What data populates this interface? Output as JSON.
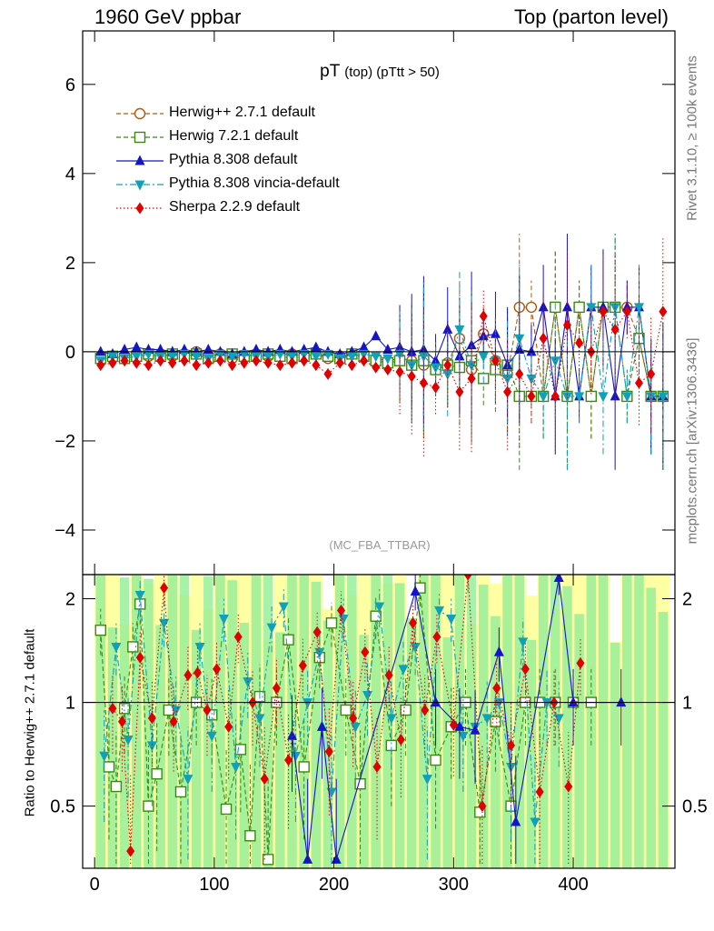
{
  "header": {
    "left": "1960 GeV ppbar",
    "right": "Top (parton level)"
  },
  "side_labels": {
    "rivet": "Rivet 3.1.10, ≥ 100k events",
    "mcplots": "mcplots.cern.ch [arXiv:1306.3436]"
  },
  "plot_title": {
    "main": "pT",
    "sub": "(top) (pTtt > 50)"
  },
  "analysis_tag": "(MC_FBA_TTBAR)",
  "chart_data": [
    {
      "type": "scatter",
      "panel": "main",
      "xlim": [
        -10,
        485
      ],
      "ylim": [
        -5,
        7.2
      ],
      "yticks": [
        -4,
        -2,
        0,
        2,
        4,
        6
      ],
      "xticks": [
        0,
        100,
        200,
        300,
        400
      ],
      "legend_position": "top-left",
      "series": [
        {
          "name": "Herwig++ 2.7.1 default",
          "color": "#b05a10",
          "marker": "circle-open",
          "line": "dashed",
          "x": [
            5,
            15,
            25,
            35,
            45,
            55,
            65,
            75,
            85,
            95,
            105,
            115,
            125,
            135,
            145,
            155,
            165,
            175,
            185,
            195,
            205,
            215,
            225,
            235,
            245,
            255,
            265,
            275,
            285,
            295,
            305,
            315,
            325,
            335,
            345,
            355,
            365,
            375,
            385,
            395,
            405,
            415,
            425,
            435,
            445,
            455,
            465,
            475
          ],
          "y": [
            -0.1,
            -0.15,
            -0.1,
            -0.05,
            -0.1,
            -0.05,
            -0.1,
            -0.05,
            0.0,
            -0.1,
            -0.05,
            -0.15,
            -0.1,
            -0.05,
            -0.1,
            -0.05,
            -0.05,
            -0.1,
            -0.05,
            -0.15,
            -0.1,
            -0.05,
            -0.1,
            -0.15,
            -0.2,
            -0.15,
            -0.2,
            -0.3,
            -0.35,
            -0.25,
            0.3,
            -0.4,
            0.4,
            -0.2,
            -0.5,
            1.0,
            1.0,
            -1.0,
            1.0,
            -1.0,
            1.0,
            -1.0,
            1.0,
            1.0,
            1.0,
            0.3,
            -1.0,
            -1.0
          ]
        },
        {
          "name": "Herwig 7.2.1 default",
          "color": "#3a8a10",
          "marker": "square-open",
          "line": "dashed",
          "x": [
            5,
            15,
            25,
            35,
            45,
            55,
            65,
            75,
            85,
            95,
            105,
            115,
            125,
            135,
            145,
            155,
            165,
            175,
            185,
            195,
            205,
            215,
            225,
            235,
            245,
            255,
            265,
            275,
            285,
            295,
            305,
            315,
            325,
            335,
            345,
            355,
            365,
            375,
            385,
            395,
            405,
            415,
            425,
            435,
            445,
            455,
            465,
            475
          ],
          "y": [
            -0.15,
            -0.1,
            -0.15,
            -0.1,
            -0.05,
            -0.1,
            -0.05,
            -0.1,
            -0.05,
            -0.15,
            -0.1,
            -0.05,
            -0.1,
            -0.1,
            -0.05,
            -0.1,
            -0.15,
            -0.1,
            -0.05,
            -0.1,
            -0.15,
            -0.05,
            -0.1,
            -0.2,
            -0.25,
            -0.2,
            -0.3,
            -0.2,
            -0.4,
            -0.3,
            -0.35,
            -0.2,
            -0.6,
            -0.4,
            -0.3,
            -1.0,
            -1.0,
            -1.0,
            1.0,
            -1.0,
            1.0,
            -1.0,
            1.0,
            1.0,
            -1.0,
            0.3,
            -1.0,
            -1.0
          ]
        },
        {
          "name": "Pythia 8.308 default",
          "color": "#1515c8",
          "marker": "triangle-up",
          "line": "solid",
          "x": [
            5,
            15,
            25,
            35,
            45,
            55,
            65,
            75,
            85,
            95,
            105,
            115,
            125,
            135,
            145,
            155,
            165,
            175,
            185,
            195,
            205,
            215,
            225,
            235,
            245,
            255,
            265,
            275,
            285,
            295,
            305,
            315,
            325,
            335,
            345,
            355,
            365,
            375,
            385,
            395,
            405,
            415,
            425,
            435,
            445,
            455,
            465,
            475
          ],
          "y": [
            0.0,
            -0.05,
            0.05,
            0.1,
            0.05,
            0.05,
            0.0,
            0.05,
            0.0,
            0.05,
            0.0,
            -0.05,
            0.0,
            0.05,
            0.0,
            0.05,
            0.0,
            0.05,
            0.1,
            0.0,
            -0.05,
            0.0,
            0.1,
            0.35,
            0.05,
            0.1,
            0.0,
            0.05,
            -0.2,
            0.5,
            -0.1,
            0.15,
            0.35,
            0.4,
            -0.3,
            0.05,
            0.0,
            1.0,
            -1.0,
            1.0,
            -1.0,
            1.0,
            1.0,
            -1.0,
            1.0,
            1.0,
            -1.0,
            -1.0
          ]
        },
        {
          "name": "Pythia 8.308 vincia-default",
          "color": "#10a0b8",
          "marker": "triangle-down",
          "line": "dashdot",
          "x": [
            5,
            15,
            25,
            35,
            45,
            55,
            65,
            75,
            85,
            95,
            105,
            115,
            125,
            135,
            145,
            155,
            165,
            175,
            185,
            195,
            205,
            215,
            225,
            235,
            245,
            255,
            265,
            275,
            285,
            295,
            305,
            315,
            325,
            335,
            345,
            355,
            365,
            375,
            385,
            395,
            405,
            415,
            425,
            435,
            445,
            455,
            465,
            475
          ],
          "y": [
            -0.2,
            -0.1,
            -0.15,
            -0.1,
            -0.05,
            -0.1,
            -0.1,
            -0.05,
            -0.1,
            -0.15,
            -0.05,
            -0.1,
            -0.05,
            -0.1,
            -0.1,
            -0.05,
            -0.1,
            -0.05,
            -0.1,
            -0.05,
            -0.15,
            -0.1,
            -0.05,
            -0.1,
            -0.15,
            -0.05,
            -0.3,
            -0.1,
            -0.35,
            -0.5,
            0.5,
            -0.3,
            -0.1,
            -0.2,
            -0.6,
            0.3,
            -0.6,
            -1.0,
            -0.2,
            -1.0,
            -1.0,
            1.0,
            -1.0,
            1.0,
            -1.0,
            1.0,
            -1.0,
            -1.0
          ]
        },
        {
          "name": "Sherpa 2.2.9 default",
          "color": "#e00000",
          "marker": "diamond",
          "line": "dotted",
          "x": [
            5,
            15,
            25,
            35,
            45,
            55,
            65,
            75,
            85,
            95,
            105,
            115,
            125,
            135,
            145,
            155,
            165,
            175,
            185,
            195,
            205,
            215,
            225,
            235,
            245,
            255,
            265,
            275,
            285,
            295,
            305,
            315,
            325,
            335,
            345,
            355,
            365,
            375,
            385,
            395,
            405,
            415,
            425,
            435,
            445,
            455,
            465,
            475
          ],
          "y": [
            -0.3,
            -0.25,
            -0.2,
            -0.25,
            -0.3,
            -0.2,
            -0.25,
            -0.2,
            -0.3,
            -0.25,
            -0.2,
            -0.3,
            -0.25,
            -0.2,
            -0.25,
            -0.3,
            -0.25,
            -0.2,
            -0.3,
            -0.5,
            -0.25,
            -0.3,
            -0.2,
            -0.35,
            -0.4,
            -0.45,
            -0.55,
            -0.7,
            -0.8,
            -0.3,
            -0.9,
            -0.6,
            0.8,
            -0.2,
            -0.9,
            -0.5,
            -1.0,
            0.3,
            -1.0,
            0.6,
            0.2,
            0.0,
            0.9,
            0.5,
            0.9,
            -0.7,
            -0.5,
            0.9
          ]
        }
      ]
    },
    {
      "type": "scatter",
      "panel": "ratio",
      "ylabel": "Ratio to Herwig++ 2.7.1 default",
      "xlim": [
        -10,
        485
      ],
      "ylim": [
        0.33,
        2.35
      ],
      "yticks": [
        0.5,
        1,
        2
      ],
      "xticks": [
        0,
        100,
        200,
        300,
        400
      ],
      "series": [
        {
          "name": "Herwig 7.2.1 default",
          "color": "#3a8a10",
          "marker": "square-open",
          "line": "dashed",
          "x": [
            5,
            12,
            18,
            25,
            32,
            38,
            45,
            52,
            62,
            72,
            85,
            98,
            110,
            122,
            130,
            138,
            145,
            152,
            162,
            175,
            188,
            198,
            210,
            222,
            235,
            248,
            260,
            272,
            285,
            298,
            310,
            322,
            335,
            348,
            360,
            372,
            385,
            400,
            415
          ],
          "y": [
            1.62,
            0.65,
            0.57,
            0.96,
            1.45,
            1.93,
            0.5,
            0.62,
            0.95,
            0.55,
            1.0,
            0.92,
            0.49,
            0.73,
            0.41,
            1.04,
            0.35,
            1.0,
            1.52,
            0.65,
            1.35,
            1.7,
            0.95,
            0.58,
            1.78,
            0.75,
            0.95,
            2.15,
            0.68,
            0.85,
            1.0,
            0.48,
            0.88,
            0.5,
            1.0,
            1.0,
            1.0,
            1.0,
            1.0
          ]
        },
        {
          "name": "Pythia 8.308 vincia-default",
          "color": "#10a0b8",
          "marker": "triangle-down",
          "line": "dashdot",
          "x": [
            8,
            18,
            28,
            38,
            48,
            58,
            68,
            78,
            88,
            98,
            108,
            118,
            128,
            138,
            148,
            158,
            168,
            178,
            188,
            198,
            208,
            218,
            228,
            238,
            248,
            258,
            268,
            278,
            288,
            298,
            308,
            318,
            328,
            338,
            348,
            358,
            368,
            378,
            388
          ],
          "y": [
            0.7,
            1.45,
            0.78,
            2.05,
            0.75,
            1.7,
            0.95,
            0.6,
            1.45,
            0.8,
            1.75,
            0.65,
            1.15,
            0.9,
            1.65,
            1.9,
            0.7,
            1.0,
            1.4,
            0.55,
            1.75,
            0.85,
            1.05,
            1.9,
            0.9,
            1.25,
            1.45,
            0.6,
            1.85,
            1.75,
            0.8,
            0.85,
            0.9,
            1.0,
            0.65,
            1.5,
            0.45,
            1.0,
            0.9
          ]
        },
        {
          "name": "Pythia 8.308 default",
          "color": "#1515c8",
          "marker": "triangle-up",
          "line": "solid",
          "x": [
            165,
            178,
            190,
            202,
            268,
            285,
            305,
            318,
            338,
            352,
            388,
            400,
            440
          ],
          "y": [
            0.8,
            0.35,
            0.85,
            0.35,
            2.1,
            1.0,
            0.85,
            0.83,
            1.4,
            0.45,
            2.3,
            1.0,
            1.0
          ]
        },
        {
          "name": "Sherpa 2.2.9 default",
          "color": "#e00000",
          "marker": "diamond",
          "line": "dotted",
          "x": [
            15,
            23,
            30,
            38,
            48,
            58,
            66,
            78,
            86,
            94,
            102,
            112,
            120,
            132,
            142,
            152,
            162,
            174,
            186,
            196,
            206,
            216,
            226,
            236,
            246,
            256,
            266,
            276,
            286,
            300,
            312,
            324,
            336,
            348,
            360,
            372,
            384,
            396,
            406
          ],
          "y": [
            0.96,
            0.88,
            0.37,
            1.35,
            0.9,
            2.15,
            0.88,
            1.2,
            1.22,
            0.95,
            1.25,
            0.85,
            1.55,
            1.0,
            0.6,
            1.1,
            0.68,
            1.28,
            1.6,
            0.72,
            1.85,
            0.9,
            1.4,
            0.65,
            1.2,
            0.78,
            1.7,
            0.95,
            1.55,
            0.86,
            2.35,
            0.5,
            1.1,
            0.75,
            1.25,
            0.55,
            1.0,
            0.57,
            1.3
          ]
        }
      ]
    }
  ]
}
